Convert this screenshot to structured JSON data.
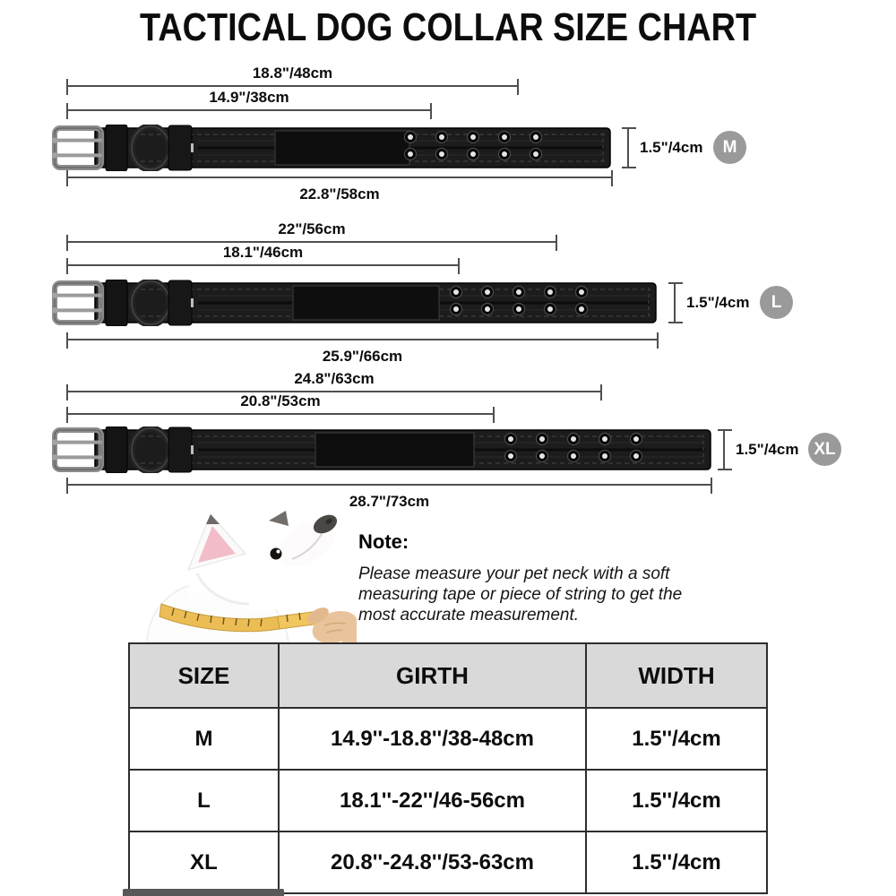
{
  "title": "TACTICAL DOG COLLAR SIZE CHART",
  "collars": [
    {
      "badge": "M",
      "top_dim": "18.8\"/48cm",
      "mid_dim": "14.9\"/38cm",
      "bottom_dim": "22.8\"/58cm",
      "width_dim": "1.5\"/4cm"
    },
    {
      "badge": "L",
      "top_dim": "22\"/56cm",
      "mid_dim": "18.1\"/46cm",
      "bottom_dim": "25.9\"/66cm",
      "width_dim": "1.5\"/4cm"
    },
    {
      "badge": "XL",
      "top_dim": "24.8\"/63cm",
      "mid_dim": "20.8\"/53cm",
      "bottom_dim": "28.7\"/73cm",
      "width_dim": "1.5\"/4cm"
    }
  ],
  "note": {
    "heading": "Note:",
    "line1": "Please measure your pet neck with a soft",
    "line2": "measuring tape or piece of string to get the",
    "line3": "most accurate measurement."
  },
  "table": {
    "headers": [
      "SIZE",
      "GIRTH",
      "WIDTH"
    ],
    "rows": [
      [
        "M",
        "14.9''-18.8''/38-48cm",
        "1.5''/4cm"
      ],
      [
        "L",
        "18.1''-22''/46-56cm",
        "1.5''/4cm"
      ],
      [
        "XL",
        "20.8''-24.8''/53-63cm",
        "1.5''/4cm"
      ]
    ]
  },
  "colors": {
    "badge_gray": "#9a9a9a",
    "table_header_bg": "#d9d9d9",
    "table_border": "#2e2e2e",
    "dim_line": "#4f4f4f",
    "collar_black": "#1c1c1c",
    "tape_yellow": "#edbd55"
  }
}
